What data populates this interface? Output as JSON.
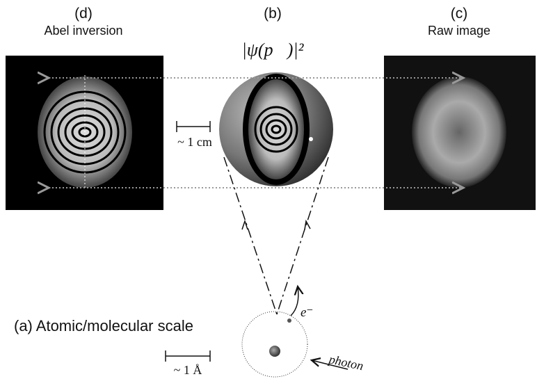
{
  "panels": {
    "d": {
      "letter": "(d)",
      "label": "Abel inversion"
    },
    "b": {
      "letter": "(b)",
      "formula": "|ψ(p⃗)|²",
      "scale": "~ 1 cm"
    },
    "c": {
      "letter": "(c)",
      "label": "Raw image"
    },
    "a": {
      "label": "(a) Atomic/molecular scale",
      "electron": "e⁻",
      "photon": "photon",
      "scale": "~ 1 Å"
    }
  }
}
